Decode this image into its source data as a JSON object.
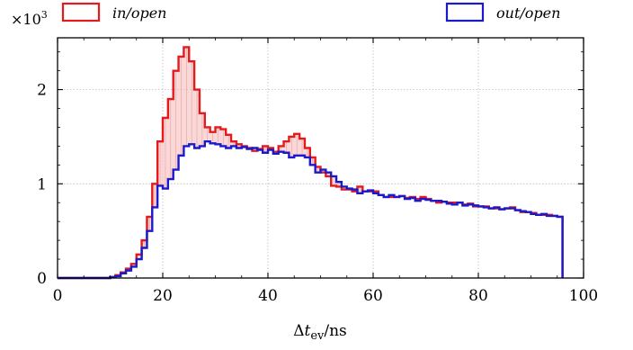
{
  "chart_data": {
    "type": "line",
    "step": true,
    "title": "",
    "xlabel": "Δt_ev/ns",
    "xlabel_parts": {
      "delta": "Δ",
      "var": "t",
      "sub": "ev",
      "unit": "/ns"
    },
    "ylabel": "",
    "y_multiplier": {
      "base": "×10",
      "exp": "3"
    },
    "xlim": [
      0,
      100
    ],
    "ylim": [
      0,
      2.55
    ],
    "x_ticks": [
      0,
      20,
      40,
      60,
      80,
      100
    ],
    "x_tick_labels": [
      "0",
      "20",
      "40",
      "60",
      "80",
      "100"
    ],
    "y_ticks": [
      0,
      1,
      2
    ],
    "y_tick_labels": [
      "0",
      "1",
      "2"
    ],
    "grid": true,
    "legend_placement": "top, outside",
    "fill_between": {
      "series_a": "in/open",
      "series_b": "out/open",
      "color": "#f5b8b8"
    },
    "bin_edges": [
      0,
      96
    ],
    "series": [
      {
        "name": "in/open",
        "color": "#e41a1c",
        "x": [
          0,
          1,
          2,
          3,
          4,
          5,
          6,
          7,
          8,
          9,
          10,
          11,
          12,
          13,
          14,
          15,
          16,
          17,
          18,
          19,
          20,
          21,
          22,
          23,
          24,
          25,
          26,
          27,
          28,
          29,
          30,
          31,
          32,
          33,
          34,
          35,
          36,
          37,
          38,
          39,
          40,
          41,
          42,
          43,
          44,
          45,
          46,
          47,
          48,
          49,
          50,
          51,
          52,
          53,
          54,
          55,
          56,
          57,
          58,
          59,
          60,
          61,
          62,
          63,
          64,
          65,
          66,
          67,
          68,
          69,
          70,
          71,
          72,
          73,
          74,
          75,
          76,
          77,
          78,
          79,
          80,
          81,
          82,
          83,
          84,
          85,
          86,
          87,
          88,
          89,
          90,
          91,
          92,
          93,
          94,
          95
        ],
        "values": [
          0,
          0,
          0,
          0,
          0,
          0,
          0,
          0,
          0,
          0,
          0.01,
          0.03,
          0.06,
          0.1,
          0.15,
          0.25,
          0.4,
          0.65,
          1.0,
          1.45,
          1.7,
          1.9,
          2.2,
          2.35,
          2.45,
          2.3,
          2.0,
          1.75,
          1.6,
          1.55,
          1.6,
          1.58,
          1.52,
          1.45,
          1.42,
          1.4,
          1.38,
          1.35,
          1.37,
          1.4,
          1.38,
          1.34,
          1.4,
          1.45,
          1.5,
          1.53,
          1.48,
          1.38,
          1.28,
          1.18,
          1.12,
          1.08,
          0.98,
          0.97,
          0.94,
          0.94,
          0.92,
          0.97,
          0.92,
          0.92,
          0.92,
          0.88,
          0.86,
          0.86,
          0.86,
          0.87,
          0.85,
          0.86,
          0.84,
          0.86,
          0.84,
          0.82,
          0.8,
          0.81,
          0.8,
          0.8,
          0.8,
          0.78,
          0.79,
          0.76,
          0.76,
          0.76,
          0.74,
          0.74,
          0.73,
          0.74,
          0.75,
          0.72,
          0.7,
          0.7,
          0.69,
          0.67,
          0.67,
          0.67,
          0.66,
          0.65
        ]
      },
      {
        "name": "out/open",
        "color": "#1a1acc",
        "x": [
          0,
          1,
          2,
          3,
          4,
          5,
          6,
          7,
          8,
          9,
          10,
          11,
          12,
          13,
          14,
          15,
          16,
          17,
          18,
          19,
          20,
          21,
          22,
          23,
          24,
          25,
          26,
          27,
          28,
          29,
          30,
          31,
          32,
          33,
          34,
          35,
          36,
          37,
          38,
          39,
          40,
          41,
          42,
          43,
          44,
          45,
          46,
          47,
          48,
          49,
          50,
          51,
          52,
          53,
          54,
          55,
          56,
          57,
          58,
          59,
          60,
          61,
          62,
          63,
          64,
          65,
          66,
          67,
          68,
          69,
          70,
          71,
          72,
          73,
          74,
          75,
          76,
          77,
          78,
          79,
          80,
          81,
          82,
          83,
          84,
          85,
          86,
          87,
          88,
          89,
          90,
          91,
          92,
          93,
          94,
          95
        ],
        "values": [
          0,
          0,
          0,
          0,
          0,
          0,
          0,
          0,
          0,
          0,
          0.01,
          0.02,
          0.05,
          0.08,
          0.12,
          0.2,
          0.32,
          0.5,
          0.75,
          0.98,
          0.95,
          1.05,
          1.15,
          1.3,
          1.4,
          1.42,
          1.38,
          1.4,
          1.45,
          1.43,
          1.42,
          1.4,
          1.38,
          1.4,
          1.38,
          1.39,
          1.37,
          1.38,
          1.36,
          1.33,
          1.36,
          1.32,
          1.34,
          1.33,
          1.28,
          1.3,
          1.3,
          1.28,
          1.2,
          1.12,
          1.15,
          1.12,
          1.08,
          1.02,
          0.97,
          0.95,
          0.94,
          0.9,
          0.92,
          0.93,
          0.9,
          0.88,
          0.86,
          0.88,
          0.86,
          0.87,
          0.84,
          0.85,
          0.82,
          0.84,
          0.83,
          0.82,
          0.82,
          0.81,
          0.79,
          0.78,
          0.8,
          0.77,
          0.78,
          0.77,
          0.76,
          0.75,
          0.74,
          0.75,
          0.73,
          0.74,
          0.74,
          0.72,
          0.71,
          0.7,
          0.68,
          0.67,
          0.68,
          0.66,
          0.66,
          0.65
        ]
      }
    ]
  }
}
